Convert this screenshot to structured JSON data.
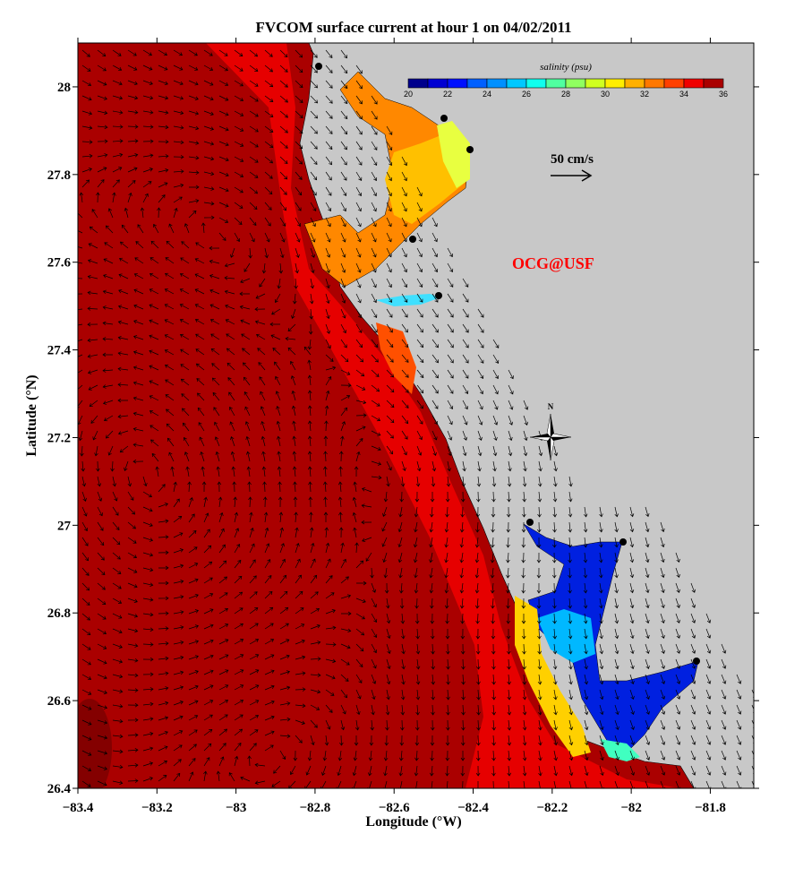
{
  "chart_data": {
    "type": "map",
    "title": "FVCOM surface current at hour 1 on 04/02/2011",
    "xlabel": "Longitude (°W)",
    "ylabel": "Latitude (°N)",
    "xlim": [
      -83.4,
      -81.69
    ],
    "ylim": [
      26.4,
      28.1
    ],
    "x_ticks": [
      "-83.4",
      "-83.2",
      "-83",
      "-82.8",
      "-82.6",
      "-82.4",
      "-82.2",
      "-82",
      "-81.8"
    ],
    "x_tick_values": [
      -83.4,
      -83.2,
      -83.0,
      -82.8,
      -82.6,
      -82.4,
      -82.2,
      -82.0,
      -81.8
    ],
    "y_ticks": [
      "26.4",
      "26.6",
      "26.8",
      "27",
      "27.2",
      "27.4",
      "27.6",
      "27.8",
      "28"
    ],
    "y_tick_values": [
      26.4,
      26.6,
      26.8,
      27.0,
      27.2,
      27.4,
      27.6,
      27.8,
      28.0
    ],
    "colorbar": {
      "title": "salinity (psu)",
      "range": [
        20,
        36
      ],
      "labels": [
        "20",
        "22",
        "24",
        "26",
        "28",
        "30",
        "32",
        "34",
        "36"
      ],
      "colors": [
        "#00008c",
        "#0000d2",
        "#0010ff",
        "#0060ff",
        "#0090ff",
        "#00c8ff",
        "#10ffee",
        "#50ffa0",
        "#90ff60",
        "#d0ff20",
        "#ffee00",
        "#ffb000",
        "#ff7800",
        "#ff4000",
        "#f00000",
        "#aa0000"
      ]
    },
    "scale_arrow_label": "50 cm/s",
    "watermark": "OCG@USF",
    "north_label": "N",
    "colors": {
      "ocean": "#aa0000",
      "land": "#c8c8c8",
      "nearshore": "#e60000",
      "watermark": "#ff0000"
    }
  }
}
